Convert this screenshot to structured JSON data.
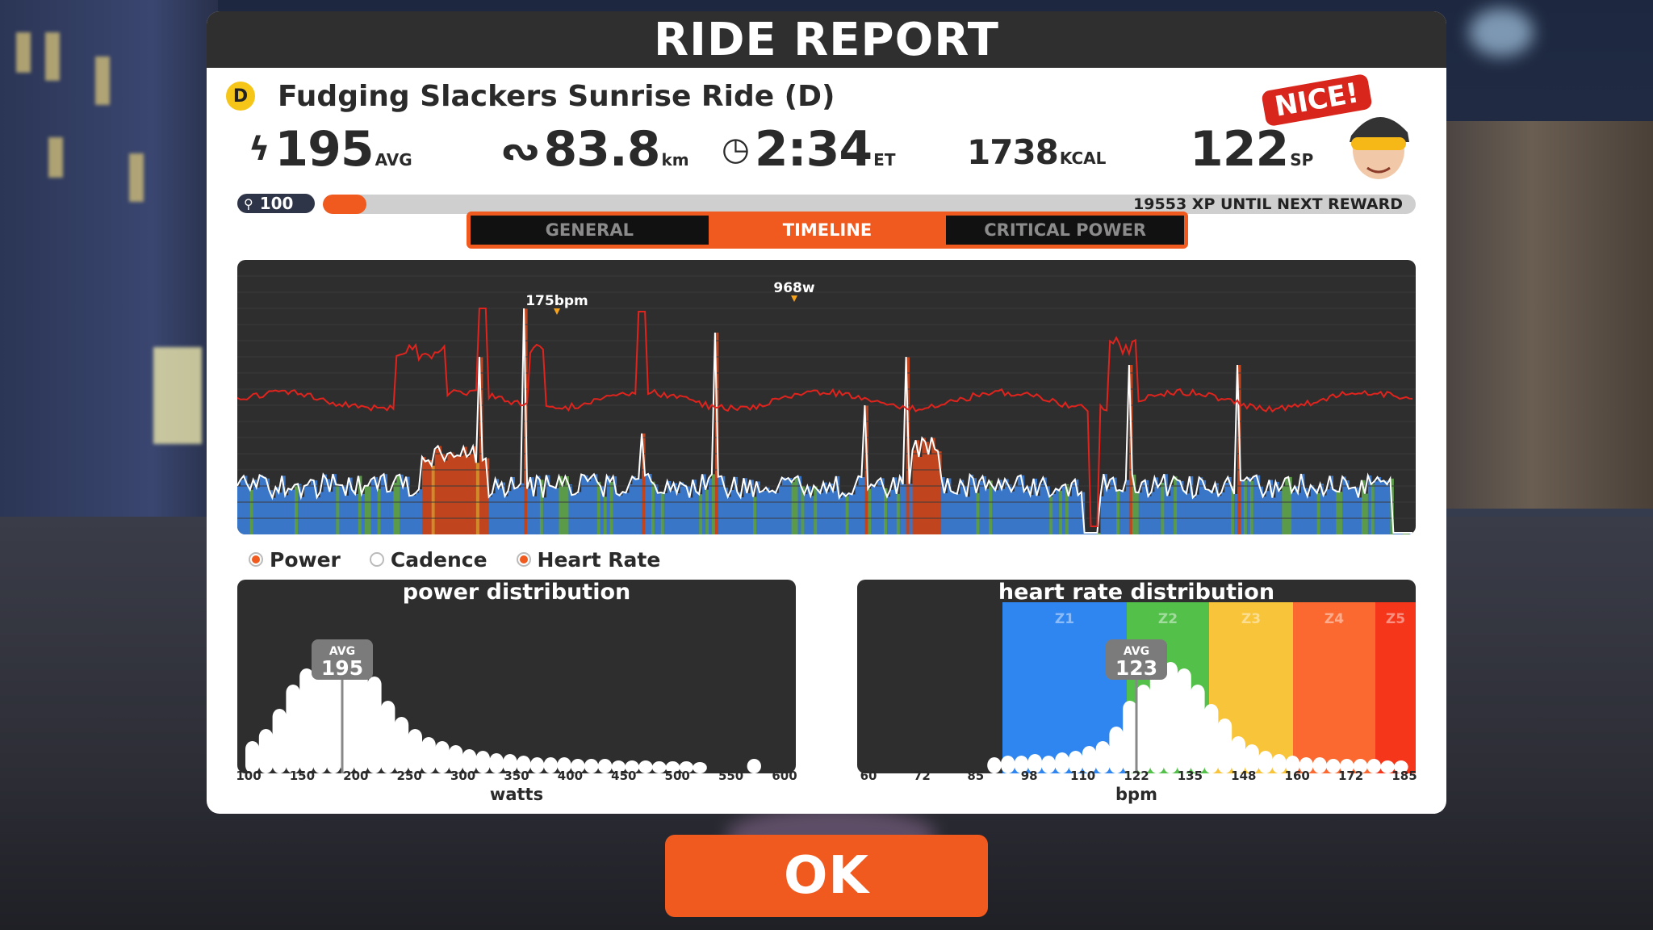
{
  "header": {
    "title": "RIDE REPORT"
  },
  "event": {
    "category": "D",
    "title": "Fudging Slackers Sunrise Ride (D)"
  },
  "stats": {
    "power": {
      "value": "195",
      "unit": "AVG"
    },
    "distance": {
      "value": "83.8",
      "unit": "km"
    },
    "time": {
      "value": "2:34",
      "unit": "ET"
    },
    "calories": {
      "value": "1738",
      "unit": "KCAL"
    },
    "sport_points": {
      "value": "122",
      "unit": "SP"
    }
  },
  "badge": {
    "text": "NICE!"
  },
  "level": {
    "value": "100",
    "xp_text": "19553 XP UNTIL NEXT REWARD",
    "progress": 0.02
  },
  "tabs": [
    {
      "label": "GENERAL",
      "active": false
    },
    {
      "label": "TIMELINE",
      "active": true
    },
    {
      "label": "CRITICAL POWER",
      "active": false
    }
  ],
  "timeline": {
    "hr_peak_label": "175bpm",
    "power_peak_label": "968w",
    "hr_color": "#e0231d",
    "power_line_color": "#ffffff"
  },
  "legend": [
    {
      "label": "Power",
      "on": true
    },
    {
      "label": "Cadence",
      "on": false
    },
    {
      "label": "Heart Rate",
      "on": true
    }
  ],
  "power_distribution": {
    "title": "power distribution",
    "avg_label": "AVG",
    "avg_value": "195",
    "axis_name": "watts",
    "ticks": [
      "100",
      "150",
      "200",
      "250",
      "300",
      "350",
      "400",
      "450",
      "500",
      "550",
      "600"
    ]
  },
  "hr_distribution": {
    "title": "heart rate distribution",
    "avg_label": "AVG",
    "avg_value": "123",
    "axis_name": "bpm",
    "ticks": [
      "60",
      "72",
      "85",
      "98",
      "110",
      "122",
      "135",
      "148",
      "160",
      "172",
      "185"
    ],
    "zones": [
      {
        "label": "Z1",
        "color": "#2f86f0"
      },
      {
        "label": "Z2",
        "color": "#53c04a"
      },
      {
        "label": "Z3",
        "color": "#f8c43a"
      },
      {
        "label": "Z4",
        "color": "#fb6930"
      },
      {
        "label": "Z5",
        "color": "#f5361a"
      }
    ]
  },
  "ok_button": {
    "label": "OK"
  }
}
